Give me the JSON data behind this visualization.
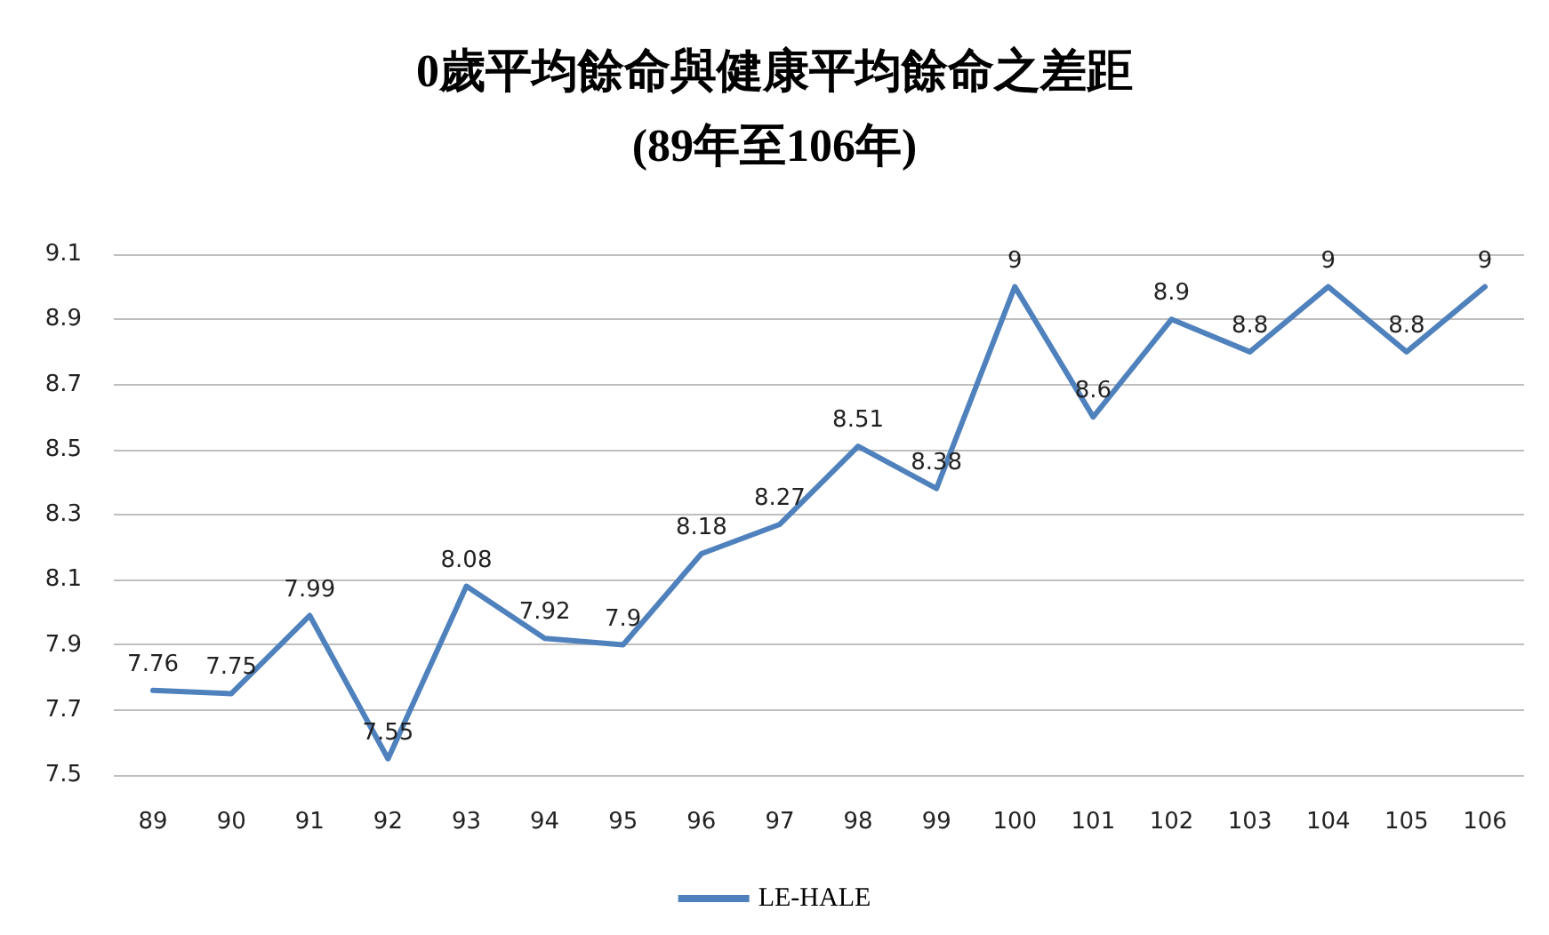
{
  "chart_data": {
    "type": "line",
    "title": "0歲平均餘命與健康平均餘命之差距",
    "subtitle": "(89年至106年)",
    "categories": [
      "89",
      "90",
      "91",
      "92",
      "93",
      "94",
      "95",
      "96",
      "97",
      "98",
      "99",
      "100",
      "101",
      "102",
      "103",
      "104",
      "105",
      "106"
    ],
    "series": [
      {
        "name": "LE-HALE",
        "color": "#4f81bd",
        "values": [
          7.76,
          7.75,
          7.99,
          7.55,
          8.08,
          7.92,
          7.9,
          8.18,
          8.27,
          8.51,
          8.38,
          9,
          8.6,
          8.9,
          8.8,
          9,
          8.8,
          9
        ]
      }
    ],
    "ylim": [
      7.5,
      9.1
    ],
    "yticks": [
      7.5,
      7.7,
      7.9,
      8.1,
      8.3,
      8.5,
      8.7,
      8.9,
      9.1
    ],
    "grid": "y",
    "legend": "bottom",
    "data_labels": true,
    "marker": "none",
    "line_style": "solid"
  }
}
